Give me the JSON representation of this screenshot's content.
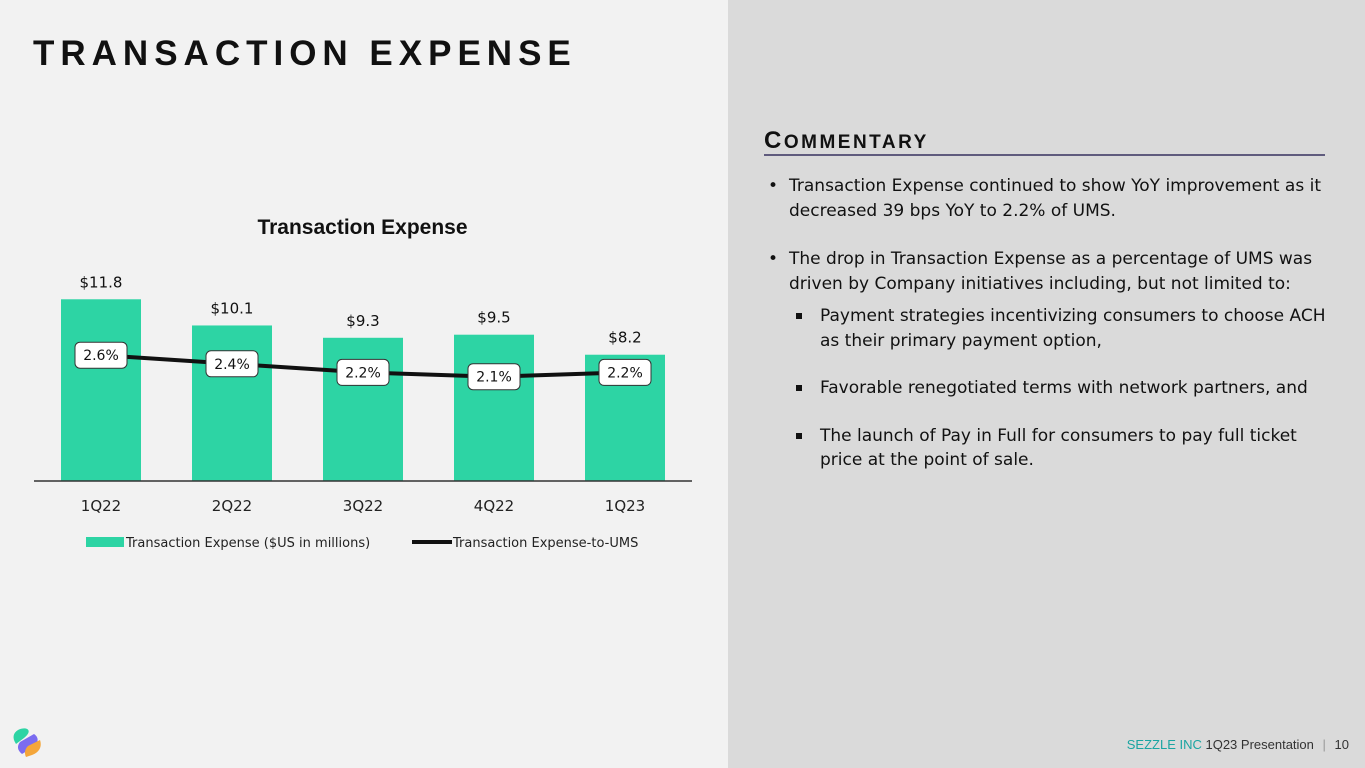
{
  "slide": {
    "title": "TRANSACTION EXPENSE"
  },
  "commentary": {
    "title_cap": "C",
    "title_rest": "OMMENTARY",
    "bullets": [
      "Transaction Expense continued to show YoY improvement as it decreased 39 bps YoY to 2.2% of UMS.",
      "The drop in Transaction Expense as a percentage of UMS was driven by Company initiatives including, but not limited to:"
    ],
    "sub_bullets": [
      "Payment strategies incentivizing consumers to choose ACH as their primary payment option,",
      "Favorable renegotiated terms with network partners, and",
      "The launch of Pay in Full for consumers to pay full ticket price at the point of sale."
    ]
  },
  "footer": {
    "brand": "SEZZLE INC",
    "presentation": "1Q23 Presentation",
    "separator": "|",
    "page": "10"
  },
  "colors": {
    "bar": "#2dd4a4",
    "line": "#111111",
    "accent_rule": "#5f5b7d",
    "brand": "#1aa5a2"
  },
  "chart_data": {
    "type": "bar",
    "title": "Transaction Expense",
    "categories": [
      "1Q22",
      "2Q22",
      "3Q22",
      "4Q22",
      "1Q23"
    ],
    "series": [
      {
        "name": "Transaction Expense ($US in millions)",
        "type": "bar",
        "values": [
          11.8,
          10.1,
          9.3,
          9.5,
          8.2
        ],
        "labels": [
          "$11.8",
          "$10.1",
          "$9.3",
          "$9.5",
          "$8.2"
        ]
      },
      {
        "name": "Transaction Expense-to-UMS",
        "type": "line",
        "values": [
          2.6,
          2.4,
          2.2,
          2.1,
          2.2
        ],
        "labels": [
          "2.6%",
          "2.4%",
          "2.2%",
          "2.1%",
          "2.2%"
        ]
      }
    ],
    "legend_position": "bottom",
    "grid": false
  }
}
